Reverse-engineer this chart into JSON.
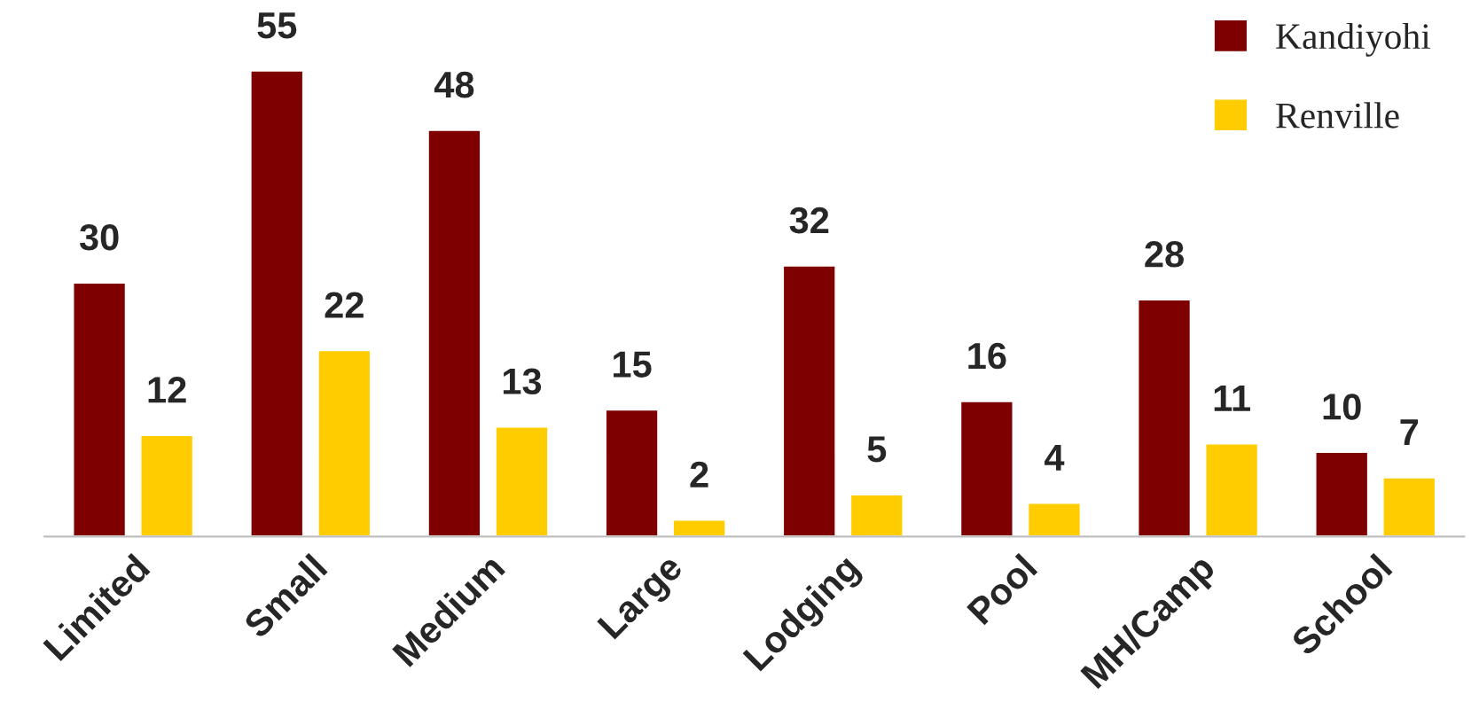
{
  "chart_data": {
    "type": "bar",
    "categories": [
      "Limited",
      "Small",
      "Medium",
      "Large",
      "Lodging",
      "Pool",
      "MH/Camp",
      "School"
    ],
    "series": [
      {
        "name": "Kandiyohi",
        "color": "#7f0000",
        "values": [
          30,
          55,
          48,
          15,
          32,
          16,
          28,
          10
        ]
      },
      {
        "name": "Renville",
        "color": "#ffcc00",
        "values": [
          12,
          22,
          13,
          2,
          5,
          4,
          11,
          7
        ]
      }
    ],
    "data_labels": true,
    "legend": "top right",
    "grid": false,
    "tick_labels": "x"
  }
}
